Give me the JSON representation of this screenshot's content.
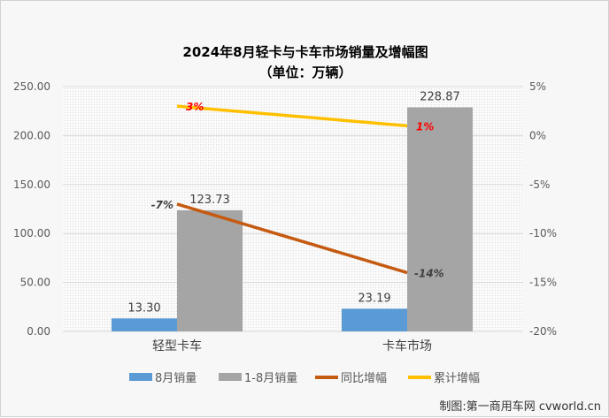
{
  "chart_data": {
    "type": "bar+line",
    "title": "2024年8月轻卡与卡车市场销量及增幅图",
    "subtitle": "（单位：万辆）",
    "categories": [
      "轻型卡车",
      "卡车市场"
    ],
    "bar_series": [
      {
        "name": "8月销量",
        "values": [
          13.3,
          23.19
        ],
        "labels": [
          "13.30",
          "23.19"
        ],
        "color": "#5b9bd5"
      },
      {
        "name": "1-8月销量",
        "values": [
          123.73,
          228.87
        ],
        "labels": [
          "123.73",
          "228.87"
        ],
        "color": "#a5a5a5"
      }
    ],
    "line_series": [
      {
        "name": "同比增幅",
        "values": [
          -7,
          -14
        ],
        "labels": [
          "-7%",
          "-14%"
        ],
        "color": "#c55a11",
        "label_color": "#404040"
      },
      {
        "name": "累计增幅",
        "values": [
          3,
          1
        ],
        "labels": [
          "3%",
          "1%"
        ],
        "color": "#ffc000",
        "label_color": "#ff0000"
      }
    ],
    "y_left": {
      "range": [
        0,
        250
      ],
      "ticks": [
        "0.00",
        "50.00",
        "100.00",
        "150.00",
        "200.00",
        "250.00"
      ]
    },
    "y_right": {
      "range": [
        -20,
        5
      ],
      "ticks": [
        "-20%",
        "-15%",
        "-10%",
        "-5%",
        "0%",
        "5%"
      ]
    },
    "grid": true,
    "legend": "bottom"
  },
  "footer": "制图:第一商用车网 cvworld.cn"
}
